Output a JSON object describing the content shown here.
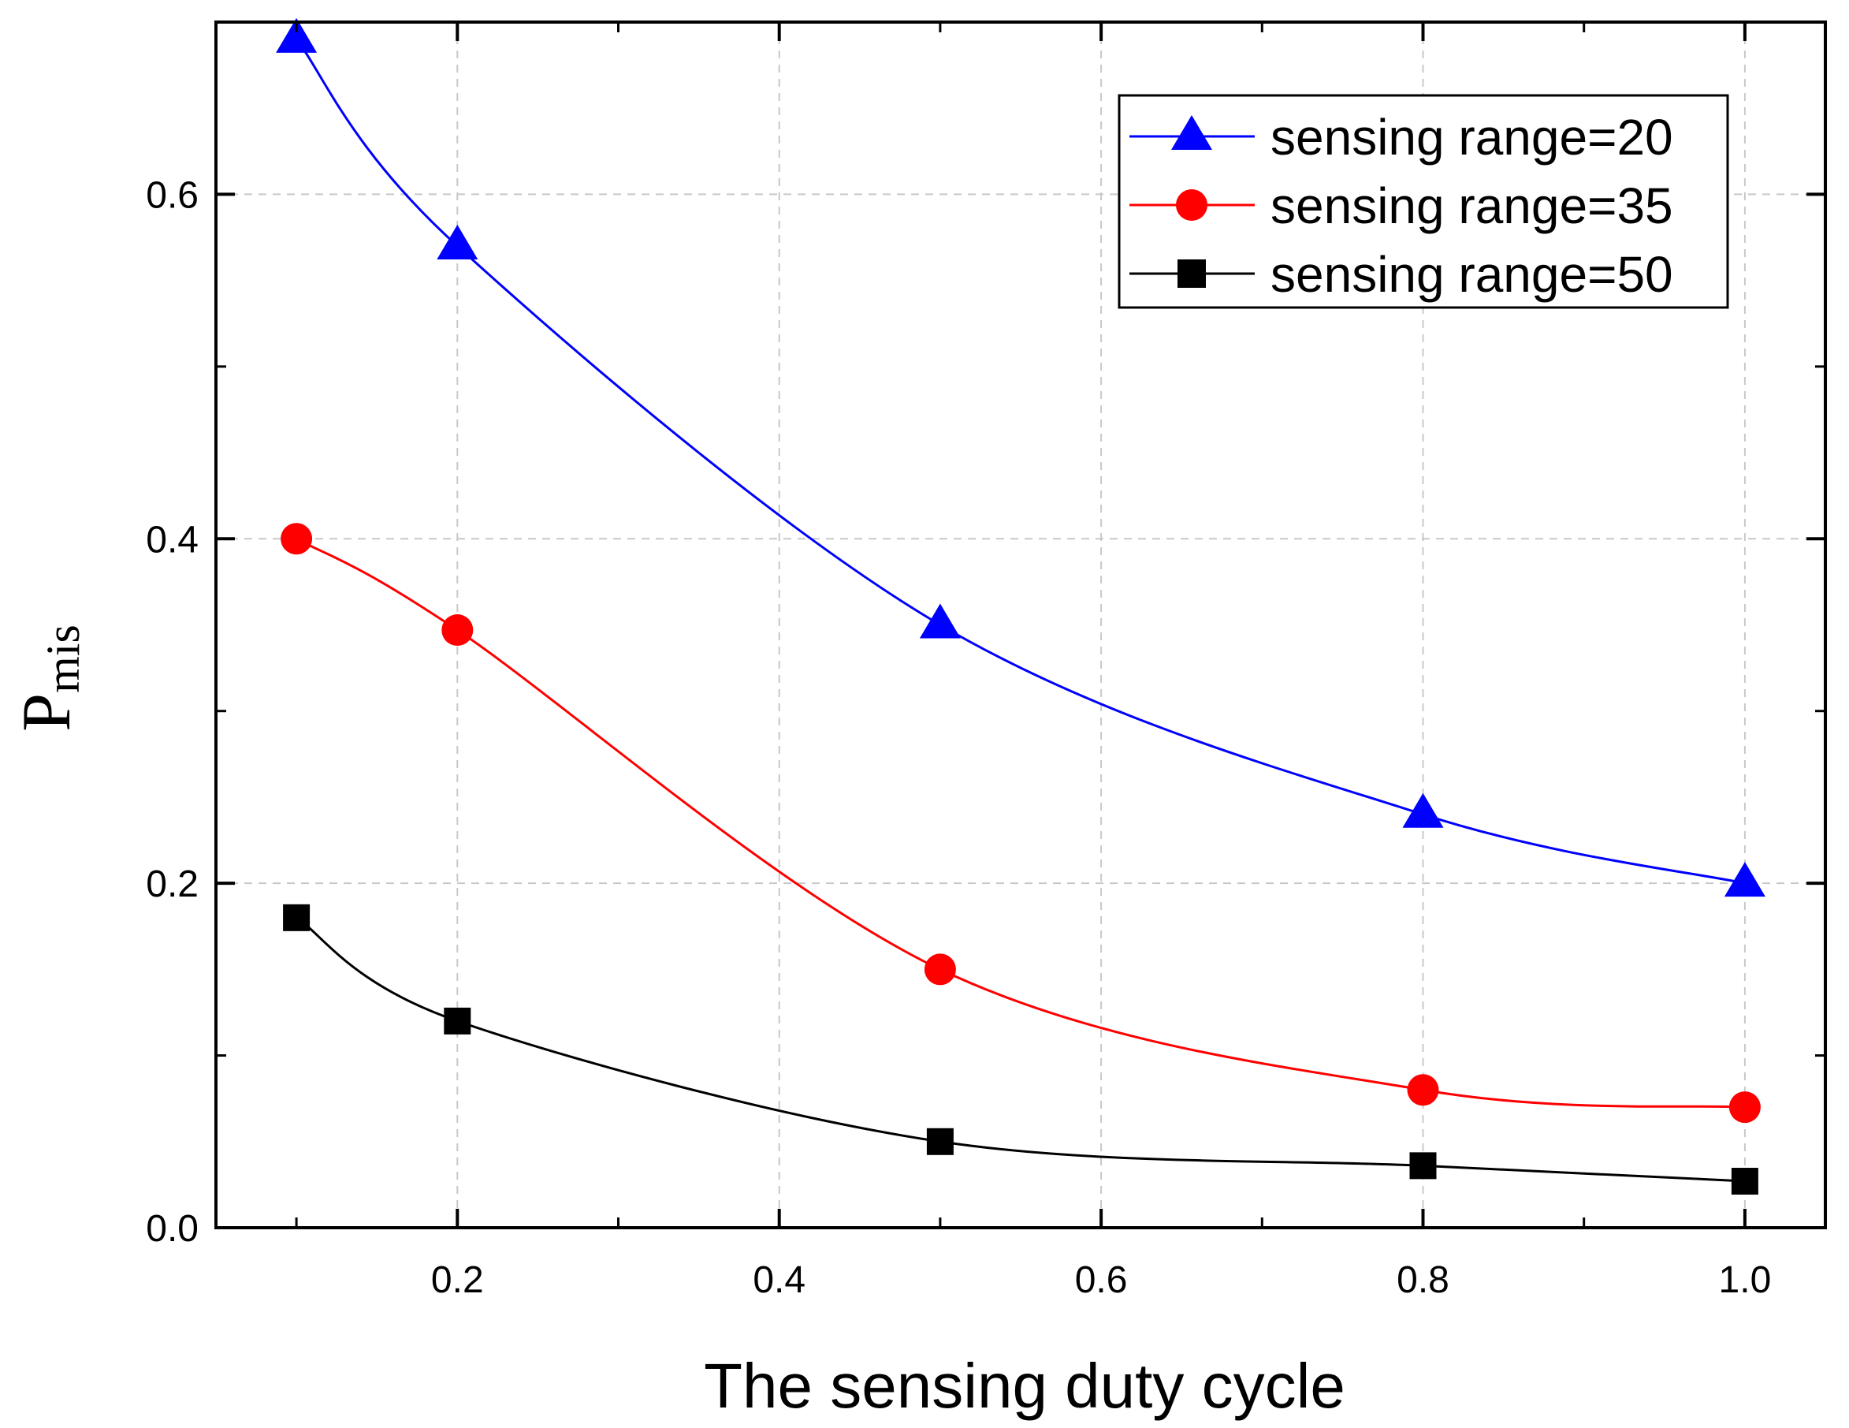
{
  "chart_data": {
    "type": "line",
    "title": "",
    "xlabel": "The sensing duty cycle",
    "ylabel": {
      "main": "P",
      "sub": "mis"
    },
    "xlim": [
      0.05,
      1.05
    ],
    "ylim": [
      0.0,
      0.7
    ],
    "x_ticks": [
      0.2,
      0.4,
      0.6,
      0.8,
      1.0
    ],
    "x_tick_labels": [
      "0.2",
      "0.4",
      "0.6",
      "0.8",
      "1.0"
    ],
    "x_minor_ticks": [
      0.1,
      0.3,
      0.5,
      0.7,
      0.9
    ],
    "y_ticks": [
      0.0,
      0.2,
      0.4,
      0.6
    ],
    "y_tick_labels": [
      "0.0",
      "0.2",
      "0.4",
      "0.6"
    ],
    "y_minor_ticks": [
      0.1,
      0.3,
      0.5,
      0.7
    ],
    "grid": true,
    "legend_position": "top-right",
    "x": [
      0.1,
      0.2,
      0.5,
      0.8,
      1.0
    ],
    "series": [
      {
        "name": "sensing range=20",
        "color": "#0000ff",
        "marker": "triangle",
        "values": [
          0.69,
          0.57,
          0.35,
          0.24,
          0.2
        ]
      },
      {
        "name": "sensing range=35",
        "color": "#ff0000",
        "marker": "circle",
        "values": [
          0.4,
          0.347,
          0.15,
          0.08,
          0.07
        ]
      },
      {
        "name": "sensing range=50",
        "color": "#000000",
        "marker": "square",
        "values": [
          0.18,
          0.12,
          0.05,
          0.036,
          0.027
        ]
      }
    ]
  }
}
